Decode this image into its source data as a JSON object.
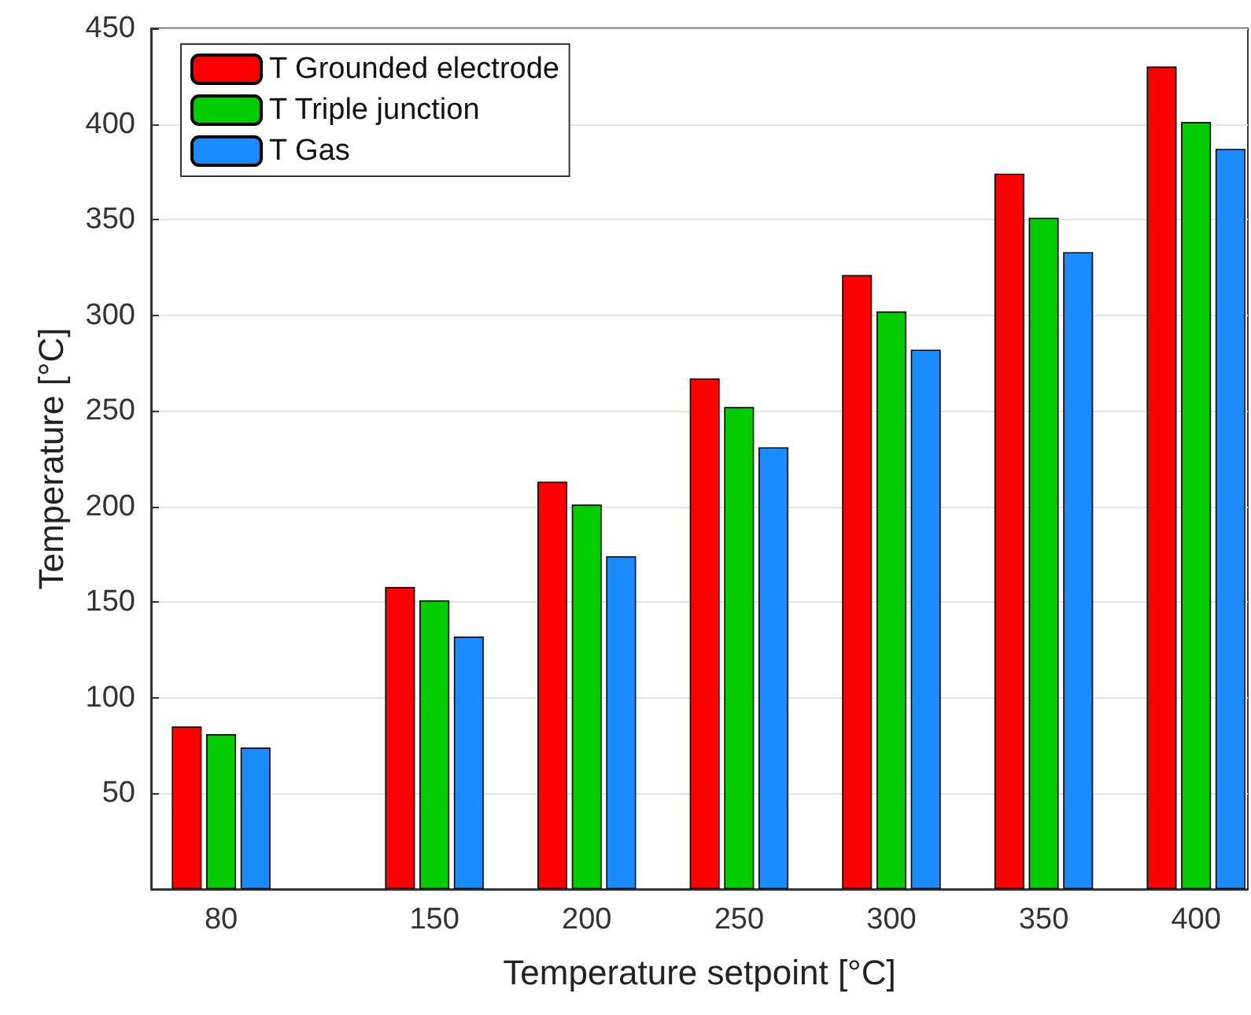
{
  "chart_data": {
    "type": "bar",
    "xlabel": "Temperature setpoint [°C]",
    "ylabel": "Temperature [°C]",
    "x": [
      80,
      150,
      200,
      250,
      300,
      350,
      400
    ],
    "series": [
      {
        "name": "T Grounded electrode",
        "color": "#ff0000",
        "values": [
          85,
          158,
          213,
          267,
          321,
          374,
          430
        ]
      },
      {
        "name": "T Triple junction",
        "color": "#00cc00",
        "values": [
          81,
          151,
          201,
          252,
          302,
          351,
          401
        ]
      },
      {
        "name": "T Gas",
        "color": "#1a8cff",
        "values": [
          74,
          132,
          174,
          231,
          282,
          333,
          387
        ]
      }
    ],
    "xlim": [
      57,
      417
    ],
    "xticks": [
      80,
      150,
      200,
      250,
      300,
      350,
      400
    ],
    "ylim": [
      0,
      450
    ],
    "yticks": [
      50,
      100,
      150,
      200,
      250,
      300,
      350,
      400,
      450
    ],
    "grid": "y",
    "legend": "top left"
  }
}
